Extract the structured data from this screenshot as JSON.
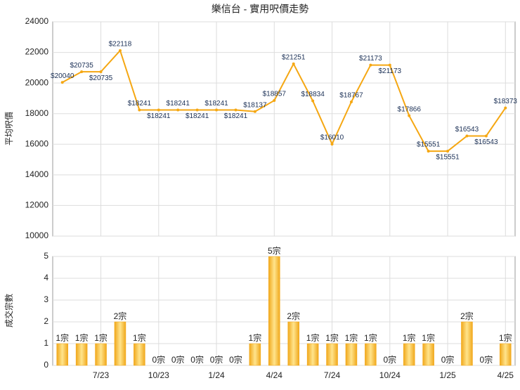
{
  "chart_data": [
    {
      "type": "line",
      "title": "樂信台 - 實用呎價走勢",
      "y_label": "平均呎價",
      "color": "#f5a712",
      "values": [
        20040,
        20735,
        20735,
        22118,
        18241,
        18241,
        18241,
        18241,
        18241,
        18241,
        18137,
        18857,
        21251,
        18834,
        16010,
        18767,
        21173,
        21173,
        17866,
        15551,
        15551,
        16543,
        16543,
        18373
      ],
      "value_labels": [
        "$20040",
        "$20735",
        "$20735",
        "$22118",
        "$18241",
        "$18241",
        "$18241",
        "$18241",
        "$18241",
        "$18241",
        "$18137",
        "$18857",
        "$21251",
        "$18834",
        "$16010",
        "$18767",
        "$21173",
        "$21173",
        "$17866",
        "$15551",
        "$15551",
        "$16543",
        "$16543",
        "$18373"
      ],
      "ylim": [
        10000,
        24000
      ],
      "yticks": [
        10000,
        12000,
        14000,
        16000,
        18000,
        20000,
        22000,
        24000
      ],
      "grid": true
    },
    {
      "type": "bar",
      "y_label": "成交宗數",
      "color": "#f5a712",
      "categories": [
        null,
        null,
        "7/23",
        null,
        null,
        "10/23",
        null,
        null,
        "1/24",
        null,
        null,
        "4/24",
        null,
        null,
        "7/24",
        null,
        null,
        "10/24",
        null,
        null,
        "1/25",
        null,
        null,
        "4/25"
      ],
      "values": [
        1,
        1,
        1,
        2,
        1,
        0,
        0,
        0,
        0,
        0,
        1,
        5,
        2,
        1,
        1,
        1,
        1,
        0,
        1,
        1,
        0,
        2,
        0,
        1
      ],
      "value_labels": [
        "1宗",
        "1宗",
        "1宗",
        "2宗",
        "1宗",
        "0宗",
        "0宗",
        "0宗",
        "0宗",
        "0宗",
        "1宗",
        "5宗",
        "2宗",
        "1宗",
        "1宗",
        "1宗",
        "1宗",
        "0宗",
        "1宗",
        "1宗",
        "0宗",
        "2宗",
        "0宗",
        "1宗"
      ],
      "ylim": [
        0,
        5
      ],
      "yticks": [
        0,
        1,
        2,
        3,
        4,
        5
      ],
      "grid": true
    }
  ]
}
